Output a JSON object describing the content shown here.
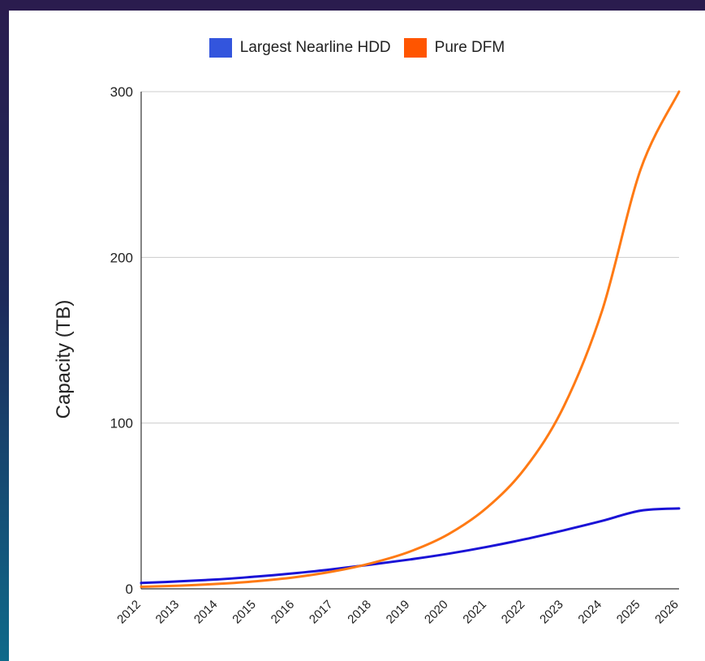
{
  "chart_data": {
    "type": "line",
    "ylabel": "Capacity (TB)",
    "ylim": [
      0,
      300
    ],
    "yticks": [
      0,
      100,
      200,
      300
    ],
    "x": [
      "2012",
      "2013",
      "2014",
      "2015",
      "2016",
      "2017",
      "2018",
      "2019",
      "2020",
      "2021",
      "2022",
      "2023",
      "2024",
      "2025",
      "2026"
    ],
    "grid": true,
    "legend_position": "top",
    "series": [
      {
        "name": "Largest Nearline HDD",
        "color": "#1a12d6",
        "legend_color": "#3355dd",
        "values": [
          3.5,
          4.5,
          5.7,
          7.4,
          9.4,
          11.9,
          14.7,
          17.7,
          21.2,
          25.3,
          30.0,
          35.3,
          41.0,
          47.2,
          48.5
        ]
      },
      {
        "name": "Pure DFM",
        "color": "#ff7a14",
        "legend_color": "#ff5500",
        "values": [
          1.2,
          1.9,
          3.0,
          4.6,
          7.0,
          10.5,
          15.5,
          22.5,
          33.0,
          49.0,
          73.0,
          110.0,
          168.0,
          253.0,
          300.0
        ]
      }
    ]
  }
}
